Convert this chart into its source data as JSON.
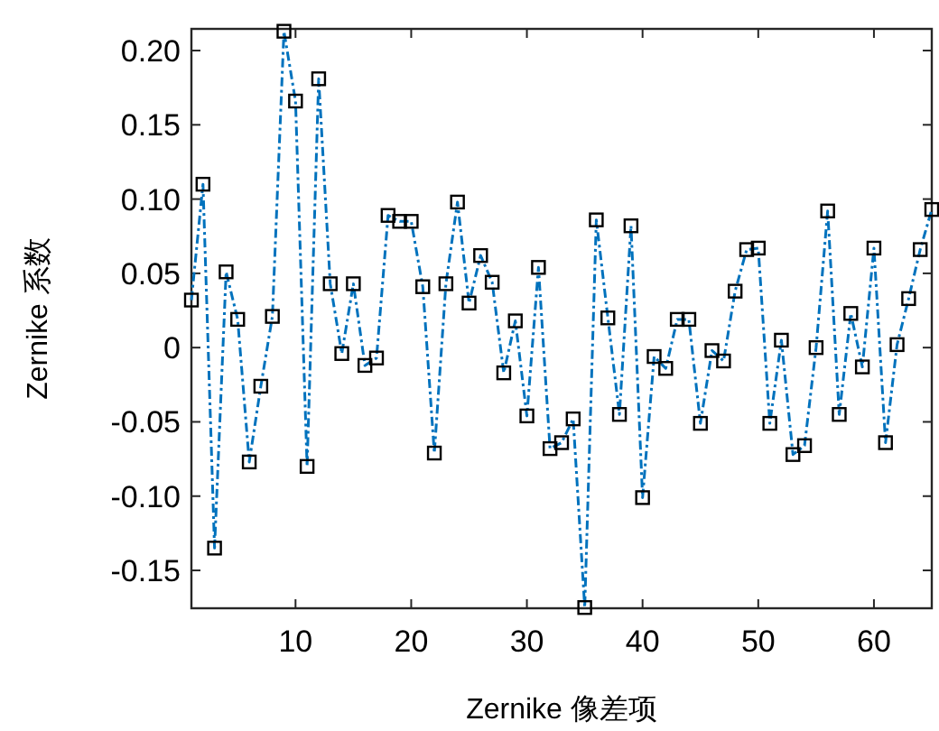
{
  "chart_data": {
    "type": "line",
    "xlabel": "Zernike 像差项",
    "ylabel": "Zernike 系数",
    "x": [
      1,
      2,
      3,
      4,
      5,
      6,
      7,
      8,
      9,
      10,
      11,
      12,
      13,
      14,
      15,
      16,
      17,
      18,
      19,
      20,
      21,
      22,
      23,
      24,
      25,
      26,
      27,
      28,
      29,
      30,
      31,
      32,
      33,
      34,
      35,
      36,
      37,
      38,
      39,
      40,
      41,
      42,
      43,
      44,
      45,
      46,
      47,
      48,
      49,
      50,
      51,
      52,
      53,
      54,
      55,
      56,
      57,
      58,
      59,
      60,
      61,
      62,
      63,
      64,
      65
    ],
    "values": [
      0.032,
      0.11,
      -0.135,
      0.051,
      0.019,
      -0.077,
      -0.026,
      0.021,
      0.213,
      0.166,
      -0.08,
      0.181,
      0.043,
      -0.004,
      0.043,
      -0.012,
      -0.007,
      0.089,
      0.085,
      0.085,
      0.041,
      -0.071,
      0.043,
      0.098,
      0.03,
      0.062,
      0.044,
      -0.017,
      0.018,
      -0.046,
      0.054,
      -0.068,
      -0.064,
      -0.048,
      -0.175,
      0.086,
      0.02,
      -0.045,
      0.082,
      -0.101,
      -0.006,
      -0.014,
      0.019,
      0.019,
      -0.051,
      -0.002,
      -0.009,
      0.038,
      0.066,
      0.067,
      -0.051,
      0.005,
      -0.072,
      -0.066,
      0.0,
      0.092,
      -0.045,
      0.023,
      -0.013,
      0.067,
      -0.064,
      0.002,
      0.033,
      0.066,
      0.093
    ],
    "color": "#0072bd",
    "marker": "square",
    "line_style": "dashed",
    "xlim": [
      1,
      65
    ],
    "ylim": [
      -0.1755,
      0.2146
    ],
    "xticks": [
      10,
      20,
      30,
      40,
      50,
      60
    ],
    "yticks": [
      {
        "value": -0.15,
        "label": "-0.15"
      },
      {
        "value": -0.1,
        "label": "-0.10"
      },
      {
        "value": -0.05,
        "label": "-0.05"
      },
      {
        "value": 0,
        "label": "0"
      },
      {
        "value": 0.05,
        "label": "0.05"
      },
      {
        "value": 0.1,
        "label": "0.10"
      },
      {
        "value": 0.15,
        "label": "0.15"
      },
      {
        "value": 0.2,
        "label": "0.20"
      }
    ],
    "grid": false
  }
}
